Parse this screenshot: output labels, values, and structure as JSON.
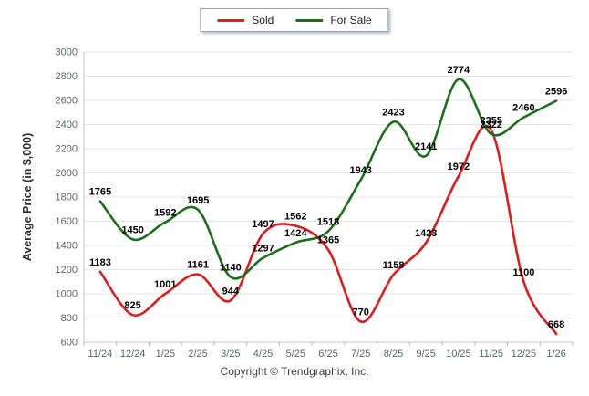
{
  "chart_data": {
    "type": "line",
    "categories": [
      "11/24",
      "12/24",
      "1/25",
      "2/25",
      "3/25",
      "4/25",
      "5/25",
      "6/25",
      "7/25",
      "8/25",
      "9/25",
      "10/25",
      "11/25",
      "12/25",
      "1/26"
    ],
    "series": [
      {
        "name": "Sold",
        "color": "#e01b1c",
        "values": [
          1183,
          825,
          1001,
          1161,
          944,
          1497,
          1562,
          1365,
          770,
          1158,
          1423,
          1972,
          2355,
          1100,
          668
        ]
      },
      {
        "name": "For Sale",
        "color": "#1a701a",
        "values": [
          1765,
          1450,
          1592,
          1695,
          1140,
          1297,
          1424,
          1518,
          1943,
          2423,
          2141,
          2774,
          2322,
          2460,
          2596
        ]
      }
    ],
    "title": "",
    "xlabel": "",
    "ylabel": "Average Price (in $,000)",
    "ylim": [
      600,
      3000
    ],
    "ytick_step": 200,
    "grid": true,
    "legend_position": "top-center",
    "data_labels": true,
    "label_color": "#000000",
    "tick_color": "#5a6570",
    "gridline_color": "#e5e5e5",
    "axis_color": "#c6c6c6"
  },
  "footer": {
    "copyright": "Copyright © Trendgraphix, Inc."
  }
}
